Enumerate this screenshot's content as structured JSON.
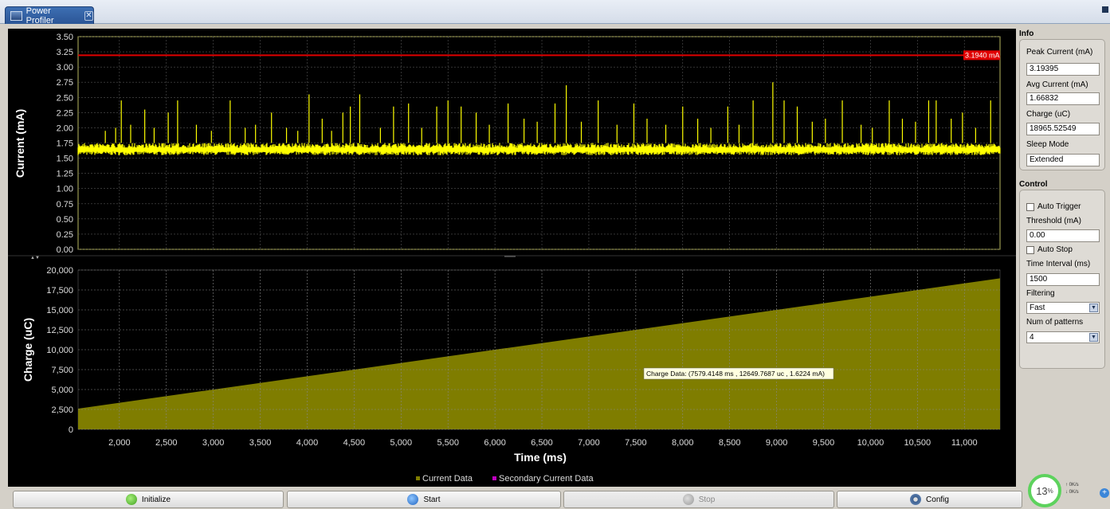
{
  "tab": {
    "title": "Power Profiler"
  },
  "current_chart": {
    "ylabel": "Current (mA)",
    "yticks": [
      "3.50",
      "3.25",
      "3.00",
      "2.75",
      "2.50",
      "2.25",
      "2.00",
      "1.75",
      "1.50",
      "1.25",
      "1.00",
      "0.75",
      "0.50",
      "0.25",
      "0.00"
    ],
    "ylim": [
      0,
      3.5
    ],
    "peak_line_value": 3.194,
    "peak_line_label": "3.1940 mA",
    "baseline_range": [
      1.55,
      1.75
    ]
  },
  "charge_chart": {
    "ylabel": "Charge (uC)",
    "xlabel": "Time (ms)",
    "yticks": [
      "20,000",
      "17,500",
      "15,000",
      "12,500",
      "10,000",
      "7,500",
      "5,000",
      "2,500",
      "0"
    ],
    "xticks": [
      "2,000",
      "2,500",
      "3,000",
      "3,500",
      "4,000",
      "4,500",
      "5,000",
      "5,500",
      "6,000",
      "6,500",
      "7,000",
      "7,500",
      "8,000",
      "8,500",
      "9,000",
      "9,500",
      "10,000",
      "10,500",
      "11,000"
    ],
    "tooltip": "Charge Data: (7579.4148 ms , 12649.7687 uc , 1.6224 mA)",
    "legend": [
      "Current Data",
      "Secondary Current Data"
    ]
  },
  "chart_data": [
    {
      "type": "line",
      "series": [
        {
          "name": "Current Data",
          "color": "#ffff00"
        }
      ],
      "x_range_ms": [
        1560,
        11380
      ],
      "ylim": [
        0,
        3.5
      ],
      "ylabel": "Current (mA)",
      "peak_line": 3.194,
      "spikes": [
        {
          "x": 1850,
          "y": 1.95
        },
        {
          "x": 1960,
          "y": 2.0
        },
        {
          "x": 2020,
          "y": 2.45
        },
        {
          "x": 2120,
          "y": 2.05
        },
        {
          "x": 2270,
          "y": 2.3
        },
        {
          "x": 2370,
          "y": 2.0
        },
        {
          "x": 2520,
          "y": 2.25
        },
        {
          "x": 2620,
          "y": 2.45
        },
        {
          "x": 2820,
          "y": 2.05
        },
        {
          "x": 2980,
          "y": 1.95
        },
        {
          "x": 3180,
          "y": 2.45
        },
        {
          "x": 3340,
          "y": 2.0
        },
        {
          "x": 3450,
          "y": 2.05
        },
        {
          "x": 3620,
          "y": 2.25
        },
        {
          "x": 3780,
          "y": 2.0
        },
        {
          "x": 3900,
          "y": 1.95
        },
        {
          "x": 4020,
          "y": 2.55
        },
        {
          "x": 4160,
          "y": 2.15
        },
        {
          "x": 4260,
          "y": 1.95
        },
        {
          "x": 4380,
          "y": 2.25
        },
        {
          "x": 4460,
          "y": 2.35
        },
        {
          "x": 4560,
          "y": 2.55
        },
        {
          "x": 4780,
          "y": 2.0
        },
        {
          "x": 4920,
          "y": 2.35
        },
        {
          "x": 5080,
          "y": 2.4
        },
        {
          "x": 5220,
          "y": 2.0
        },
        {
          "x": 5380,
          "y": 2.35
        },
        {
          "x": 5500,
          "y": 2.45
        },
        {
          "x": 5640,
          "y": 2.35
        },
        {
          "x": 5800,
          "y": 2.25
        },
        {
          "x": 5940,
          "y": 2.05
        },
        {
          "x": 6140,
          "y": 2.4
        },
        {
          "x": 6310,
          "y": 2.15
        },
        {
          "x": 6450,
          "y": 2.1
        },
        {
          "x": 6640,
          "y": 2.4
        },
        {
          "x": 6760,
          "y": 2.7
        },
        {
          "x": 6920,
          "y": 2.1
        },
        {
          "x": 7100,
          "y": 2.45
        },
        {
          "x": 7300,
          "y": 2.05
        },
        {
          "x": 7480,
          "y": 2.4
        },
        {
          "x": 7620,
          "y": 2.15
        },
        {
          "x": 7820,
          "y": 2.05
        },
        {
          "x": 8000,
          "y": 2.35
        },
        {
          "x": 8160,
          "y": 2.15
        },
        {
          "x": 8300,
          "y": 2.0
        },
        {
          "x": 8480,
          "y": 2.35
        },
        {
          "x": 8600,
          "y": 2.05
        },
        {
          "x": 8750,
          "y": 2.45
        },
        {
          "x": 8960,
          "y": 2.75
        },
        {
          "x": 9080,
          "y": 2.45
        },
        {
          "x": 9220,
          "y": 2.35
        },
        {
          "x": 9380,
          "y": 2.1
        },
        {
          "x": 9520,
          "y": 2.15
        },
        {
          "x": 9700,
          "y": 2.45
        },
        {
          "x": 9900,
          "y": 2.05
        },
        {
          "x": 10020,
          "y": 2.0
        },
        {
          "x": 10200,
          "y": 2.45
        },
        {
          "x": 10340,
          "y": 2.15
        },
        {
          "x": 10480,
          "y": 2.1
        },
        {
          "x": 10620,
          "y": 2.45
        },
        {
          "x": 10700,
          "y": 2.45
        },
        {
          "x": 10860,
          "y": 2.15
        },
        {
          "x": 10980,
          "y": 2.25
        },
        {
          "x": 11120,
          "y": 2.0
        },
        {
          "x": 11280,
          "y": 2.45
        }
      ]
    },
    {
      "type": "area",
      "series": [
        {
          "name": "Current Data",
          "color": "#7f7d00"
        }
      ],
      "x": [
        1560,
        11380
      ],
      "y": [
        2600,
        18960
      ],
      "xlim": [
        1560,
        11380
      ],
      "ylim": [
        0,
        20000
      ],
      "xlabel": "Time (ms)",
      "ylabel": "Charge (uC)"
    }
  ],
  "info": {
    "title": "Info",
    "peak_label": "Peak Current (mA)",
    "peak_value": "3.19395",
    "avg_label": "Avg Current (mA)",
    "avg_value": "1.66832",
    "charge_label": "Charge (uC)",
    "charge_value": "18965.52549",
    "sleep_label": "Sleep Mode",
    "sleep_value": "Extended"
  },
  "control": {
    "title": "Control",
    "auto_trigger": "Auto Trigger",
    "threshold_label": "Threshold (mA)",
    "threshold_value": "0.00",
    "auto_stop": "Auto Stop",
    "interval_label": "Time Interval (ms)",
    "interval_value": "1500",
    "filtering_label": "Filtering",
    "filtering_value": "Fast",
    "patterns_label": "Num of patterns",
    "patterns_value": "4"
  },
  "buttons": {
    "initialize": "Initialize",
    "start": "Start",
    "stop": "Stop",
    "config": "Config"
  },
  "tray": {
    "cpu": "13",
    "cpu_unit": "%",
    "up": "0K/s",
    "down": "0K/s"
  },
  "colors": {
    "trace": "#ffff00",
    "area": "#7f7d00",
    "peak": "#e00000",
    "secondary": "#c000c0"
  }
}
